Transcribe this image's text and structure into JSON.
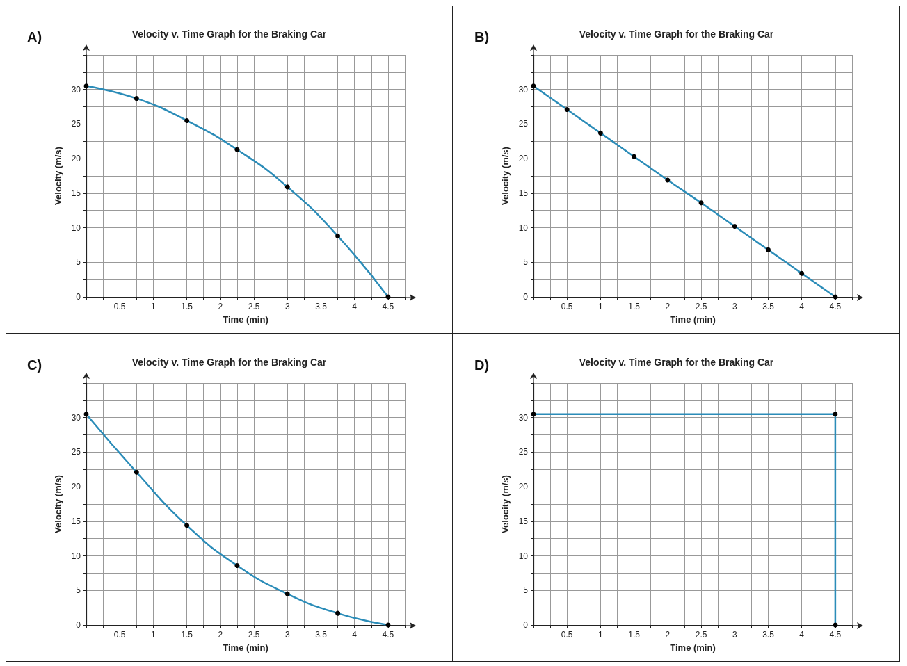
{
  "chart_data": [
    {
      "type": "line",
      "title": "Velocity v. Time Graph for the Braking Car",
      "xlabel": "Time (min)",
      "ylabel": "Velocity (m/s)",
      "annotations": [
        "A)"
      ],
      "grid": true,
      "marker": "circle",
      "xlim": [
        0,
        4.75
      ],
      "ylim": [
        0,
        35
      ],
      "xticks": [
        {
          "value": 0,
          "label": null
        },
        {
          "value": 0.25,
          "label": null
        },
        0.5,
        {
          "value": 0.75,
          "label": null
        },
        1,
        {
          "value": 1.25,
          "label": null
        },
        1.5,
        {
          "value": 1.75,
          "label": null
        },
        2,
        {
          "value": 2.25,
          "label": null
        },
        2.5,
        {
          "value": 2.75,
          "label": null
        },
        3,
        {
          "value": 3.25,
          "label": null
        },
        3.5,
        {
          "value": 3.75,
          "label": null
        },
        4,
        {
          "value": 4.25,
          "label": null
        },
        4.5,
        {
          "value": 4.75,
          "label": null
        }
      ],
      "yticks": [
        0,
        {
          "value": 2.5,
          "label": null
        },
        5,
        {
          "value": 7.5,
          "label": null
        },
        10,
        {
          "value": 12.5,
          "label": null
        },
        15,
        {
          "value": 17.5,
          "label": null
        },
        20,
        {
          "value": 22.5,
          "label": null
        },
        25,
        {
          "value": 27.5,
          "label": null
        },
        30,
        {
          "value": 32.5,
          "label": null
        },
        {
          "value": 35,
          "label": null
        }
      ],
      "series": [
        {
          "color": "#2b8cb8",
          "x": [
            0,
            0.75,
            1.5,
            2.25,
            3,
            3.75,
            4.5
          ],
          "values": [
            30.5,
            28.7,
            25.5,
            21.3,
            15.9,
            8.8,
            0
          ]
        }
      ]
    },
    {
      "type": "line",
      "title": "Velocity v. Time Graph for the Braking Car",
      "xlabel": "Time (min)",
      "ylabel": "Velocity (m/s)",
      "annotations": [
        "B)"
      ],
      "grid": true,
      "marker": "circle",
      "xlim": [
        0,
        4.75
      ],
      "ylim": [
        0,
        35
      ],
      "xticks": [
        {
          "value": 0,
          "label": null
        },
        {
          "value": 0.25,
          "label": null
        },
        0.5,
        {
          "value": 0.75,
          "label": null
        },
        1,
        {
          "value": 1.25,
          "label": null
        },
        1.5,
        {
          "value": 1.75,
          "label": null
        },
        2,
        {
          "value": 2.25,
          "label": null
        },
        2.5,
        {
          "value": 2.75,
          "label": null
        },
        3,
        {
          "value": 3.25,
          "label": null
        },
        3.5,
        {
          "value": 3.75,
          "label": null
        },
        4,
        {
          "value": 4.25,
          "label": null
        },
        4.5,
        {
          "value": 4.75,
          "label": null
        }
      ],
      "yticks": [
        0,
        {
          "value": 2.5,
          "label": null
        },
        5,
        {
          "value": 7.5,
          "label": null
        },
        10,
        {
          "value": 12.5,
          "label": null
        },
        15,
        {
          "value": 17.5,
          "label": null
        },
        20,
        {
          "value": 22.5,
          "label": null
        },
        25,
        {
          "value": 27.5,
          "label": null
        },
        30,
        {
          "value": 32.5,
          "label": null
        },
        {
          "value": 35,
          "label": null
        }
      ],
      "series": [
        {
          "color": "#2b8cb8",
          "x": [
            0,
            0.5,
            1,
            1.5,
            2,
            2.5,
            3,
            3.5,
            4,
            4.5
          ],
          "values": [
            30.5,
            27.1,
            23.7,
            20.3,
            16.9,
            13.6,
            10.2,
            6.8,
            3.4,
            0
          ]
        }
      ]
    },
    {
      "type": "line",
      "title": "Velocity v. Time Graph for the Braking Car",
      "xlabel": "Time (min)",
      "ylabel": "Velocity (m/s)",
      "annotations": [
        "C)"
      ],
      "grid": true,
      "marker": "circle",
      "xlim": [
        0,
        4.75
      ],
      "ylim": [
        0,
        35
      ],
      "xticks": [
        {
          "value": 0,
          "label": null
        },
        {
          "value": 0.25,
          "label": null
        },
        0.5,
        {
          "value": 0.75,
          "label": null
        },
        1,
        {
          "value": 1.25,
          "label": null
        },
        1.5,
        {
          "value": 1.75,
          "label": null
        },
        2,
        {
          "value": 2.25,
          "label": null
        },
        2.5,
        {
          "value": 2.75,
          "label": null
        },
        3,
        {
          "value": 3.25,
          "label": null
        },
        3.5,
        {
          "value": 3.75,
          "label": null
        },
        4,
        {
          "value": 4.25,
          "label": null
        },
        4.5,
        {
          "value": 4.75,
          "label": null
        }
      ],
      "yticks": [
        0,
        {
          "value": 2.5,
          "label": null
        },
        5,
        {
          "value": 7.5,
          "label": null
        },
        10,
        {
          "value": 12.5,
          "label": null
        },
        15,
        {
          "value": 17.5,
          "label": null
        },
        20,
        {
          "value": 22.5,
          "label": null
        },
        25,
        {
          "value": 27.5,
          "label": null
        },
        30,
        {
          "value": 32.5,
          "label": null
        },
        {
          "value": 35,
          "label": null
        }
      ],
      "series": [
        {
          "color": "#2b8cb8",
          "x": [
            0,
            0.75,
            1.5,
            2.25,
            3,
            3.75,
            4.5
          ],
          "values": [
            30.5,
            22.1,
            14.4,
            8.6,
            4.5,
            1.7,
            0
          ]
        }
      ]
    },
    {
      "type": "line",
      "title": "Velocity v. Time Graph for the Braking Car",
      "xlabel": "Time (min)",
      "ylabel": "Velocity (m/s)",
      "annotations": [
        "D)"
      ],
      "grid": true,
      "marker": "circle",
      "xlim": [
        0,
        4.75
      ],
      "ylim": [
        0,
        35
      ],
      "xticks": [
        {
          "value": 0,
          "label": null
        },
        {
          "value": 0.25,
          "label": null
        },
        0.5,
        {
          "value": 0.75,
          "label": null
        },
        1,
        {
          "value": 1.25,
          "label": null
        },
        1.5,
        {
          "value": 1.75,
          "label": null
        },
        2,
        {
          "value": 2.25,
          "label": null
        },
        2.5,
        {
          "value": 2.75,
          "label": null
        },
        3,
        {
          "value": 3.25,
          "label": null
        },
        3.5,
        {
          "value": 3.75,
          "label": null
        },
        4,
        {
          "value": 4.25,
          "label": null
        },
        4.5,
        {
          "value": 4.75,
          "label": null
        }
      ],
      "yticks": [
        0,
        {
          "value": 2.5,
          "label": null
        },
        5,
        {
          "value": 7.5,
          "label": null
        },
        10,
        {
          "value": 12.5,
          "label": null
        },
        15,
        {
          "value": 17.5,
          "label": null
        },
        20,
        {
          "value": 22.5,
          "label": null
        },
        25,
        {
          "value": 27.5,
          "label": null
        },
        30,
        {
          "value": 32.5,
          "label": null
        },
        {
          "value": 35,
          "label": null
        }
      ],
      "series": [
        {
          "color": "#2b8cb8",
          "x": [
            0,
            4.5,
            4.5
          ],
          "values": [
            30.5,
            30.5,
            0
          ]
        }
      ]
    }
  ]
}
